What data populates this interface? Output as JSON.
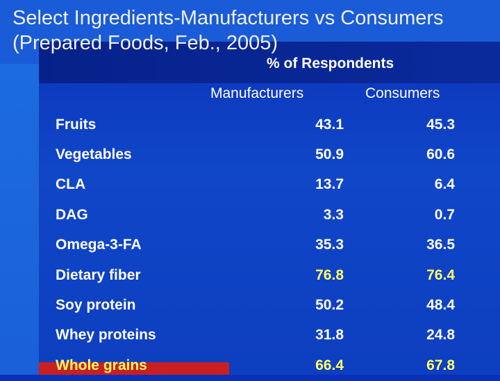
{
  "title_line1": "Select Ingredients-Manufacturers vs Consumers",
  "title_line2": "(Prepared Foods, Feb., 2005)",
  "subtitle": "% of Respondents",
  "columns": {
    "manufacturers": "Manufacturers",
    "consumers": "Consumers"
  },
  "rows": [
    {
      "name": "Fruits",
      "manufacturers": "43.1",
      "consumers": "45.3"
    },
    {
      "name": "Vegetables",
      "manufacturers": "50.9",
      "consumers": "60.6"
    },
    {
      "name": "CLA",
      "manufacturers": "13.7",
      "consumers": "6.4"
    },
    {
      "name": "DAG",
      "manufacturers": "3.3",
      "consumers": "0.7"
    },
    {
      "name": "Omega-3-FA",
      "manufacturers": "35.3",
      "consumers": "36.5"
    },
    {
      "name": "Dietary fiber",
      "manufacturers": "76.8",
      "consumers": "76.4"
    },
    {
      "name": "Soy protein",
      "manufacturers": "50.2",
      "consumers": "48.4"
    },
    {
      "name": "Whey proteins",
      "manufacturers": "31.8",
      "consumers": "24.8"
    },
    {
      "name": "Whole grains",
      "manufacturers": "66.4",
      "consumers": "67.8"
    }
  ],
  "colors": {
    "background": "#0d3fc0",
    "highlight": "#ffff66",
    "text": "#ffffff"
  }
}
